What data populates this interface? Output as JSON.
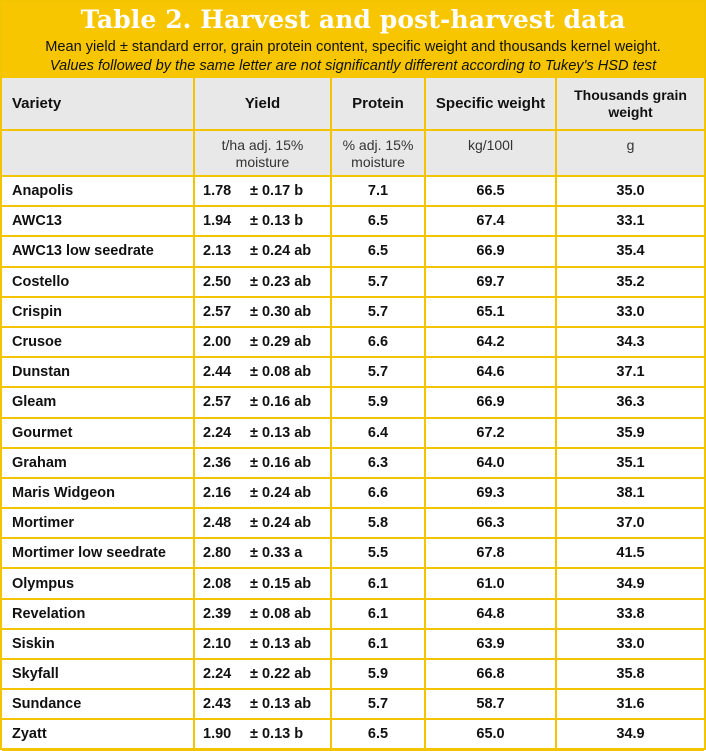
{
  "header": {
    "title": "Table 2. Harvest and post-harvest data",
    "subtitle": "Mean yield ± standard error, grain protein content, specific weight and thousands kernel weight.",
    "note": "Values followed by the same letter are not significantly different according to Tukey's HSD test"
  },
  "columns": {
    "variety": "Variety",
    "yield": "Yield",
    "protein": "Protein",
    "specific_weight": "Specific weight",
    "tgw": "Thousands grain weight"
  },
  "units": {
    "yield": "t/ha adj. 15% moisture",
    "protein": "% adj. 15% moisture",
    "specific_weight": "kg/100l",
    "tgw": "g"
  },
  "rows": [
    {
      "variety": "Anapolis",
      "yield": "1.78",
      "error": "± 0.17 b",
      "protein": "7.1",
      "sw": "66.5",
      "tgw": "35.0"
    },
    {
      "variety": "AWC13",
      "yield": "1.94",
      "error": "± 0.13 b",
      "protein": "6.5",
      "sw": "67.4",
      "tgw": "33.1"
    },
    {
      "variety": "AWC13 low seedrate",
      "yield": "2.13",
      "error": "± 0.24 ab",
      "protein": "6.5",
      "sw": "66.9",
      "tgw": "35.4"
    },
    {
      "variety": "Costello",
      "yield": "2.50",
      "error": "± 0.23 ab",
      "protein": "5.7",
      "sw": "69.7",
      "tgw": "35.2"
    },
    {
      "variety": "Crispin",
      "yield": "2.57",
      "error": "± 0.30 ab",
      "protein": "5.7",
      "sw": "65.1",
      "tgw": "33.0"
    },
    {
      "variety": "Crusoe",
      "yield": "2.00",
      "error": "± 0.29 ab",
      "protein": "6.6",
      "sw": "64.2",
      "tgw": "34.3"
    },
    {
      "variety": "Dunstan",
      "yield": "2.44",
      "error": "± 0.08 ab",
      "protein": "5.7",
      "sw": "64.6",
      "tgw": "37.1"
    },
    {
      "variety": "Gleam",
      "yield": "2.57",
      "error": "± 0.16 ab",
      "protein": "5.9",
      "sw": "66.9",
      "tgw": "36.3"
    },
    {
      "variety": "Gourmet",
      "yield": "2.24",
      "error": "± 0.13 ab",
      "protein": "6.4",
      "sw": "67.2",
      "tgw": "35.9"
    },
    {
      "variety": "Graham",
      "yield": "2.36",
      "error": "± 0.16 ab",
      "protein": "6.3",
      "sw": "64.0",
      "tgw": "35.1"
    },
    {
      "variety": "Maris Widgeon",
      "yield": "2.16",
      "error": "± 0.24 ab",
      "protein": "6.6",
      "sw": "69.3",
      "tgw": "38.1"
    },
    {
      "variety": "Mortimer",
      "yield": "2.48",
      "error": "± 0.24 ab",
      "protein": "5.8",
      "sw": "66.3",
      "tgw": "37.0"
    },
    {
      "variety": "Mortimer low seedrate",
      "yield": "2.80",
      "error": "± 0.33 a",
      "protein": "5.5",
      "sw": "67.8",
      "tgw": "41.5"
    },
    {
      "variety": "Olympus",
      "yield": "2.08",
      "error": "± 0.15 ab",
      "protein": "6.1",
      "sw": "61.0",
      "tgw": "34.9"
    },
    {
      "variety": "Revelation",
      "yield": "2.39",
      "error": "± 0.08 ab",
      "protein": "6.1",
      "sw": "64.8",
      "tgw": "33.8"
    },
    {
      "variety": "Siskin",
      "yield": "2.10",
      "error": "± 0.13 ab",
      "protein": "6.1",
      "sw": "63.9",
      "tgw": "33.0"
    },
    {
      "variety": "Skyfall",
      "yield": "2.24",
      "error": "± 0.22 ab",
      "protein": "5.9",
      "sw": "66.8",
      "tgw": "35.8"
    },
    {
      "variety": "Sundance",
      "yield": "2.43",
      "error": "± 0.13 ab",
      "protein": "5.7",
      "sw": "58.7",
      "tgw": "31.6"
    },
    {
      "variety": "Zyatt",
      "yield": "1.90",
      "error": "± 0.13 b",
      "protein": "6.5",
      "sw": "65.0",
      "tgw": "34.9"
    }
  ],
  "colors": {
    "accent": "#f7c600",
    "header_bg": "#e8e8e8"
  }
}
